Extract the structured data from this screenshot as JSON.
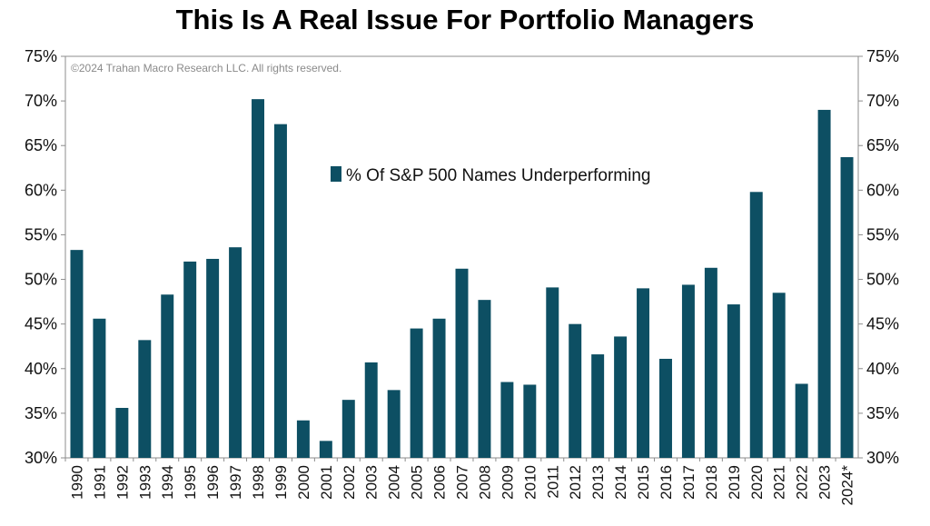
{
  "chart_data": {
    "type": "bar",
    "title": "This Is A Real Issue For Portfolio Managers",
    "copyright": "©2024 Trahan Macro Research LLC. All rights reserved.",
    "categories": [
      "1990",
      "1991",
      "1992",
      "1993",
      "1994",
      "1995",
      "1996",
      "1997",
      "1998",
      "1999",
      "2000",
      "2001",
      "2002",
      "2003",
      "2004",
      "2005",
      "2006",
      "2007",
      "2008",
      "2009",
      "2010",
      "2011",
      "2012",
      "2013",
      "2014",
      "2015",
      "2016",
      "2017",
      "2018",
      "2019",
      "2020",
      "2021",
      "2022",
      "2023",
      "2024*"
    ],
    "series": [
      {
        "name": "% Of S&P 500 Names Underperforming",
        "color": "#0d4f63",
        "values": [
          53.3,
          45.6,
          35.6,
          43.2,
          48.3,
          52.0,
          52.3,
          53.6,
          70.2,
          67.4,
          34.2,
          31.9,
          36.5,
          40.7,
          37.6,
          44.5,
          45.6,
          51.2,
          47.7,
          38.5,
          38.2,
          49.1,
          45.0,
          41.6,
          43.6,
          49.0,
          41.1,
          49.4,
          51.3,
          47.2,
          59.8,
          48.5,
          38.3,
          69.0,
          63.7
        ]
      }
    ],
    "ylim": [
      30,
      75
    ],
    "y_ticks": [
      "30%",
      "35%",
      "40%",
      "45%",
      "50%",
      "55%",
      "60%",
      "65%",
      "70%",
      "75%"
    ],
    "y_axis_sides": [
      "left",
      "right"
    ],
    "legend_position": "center",
    "grid": false
  }
}
